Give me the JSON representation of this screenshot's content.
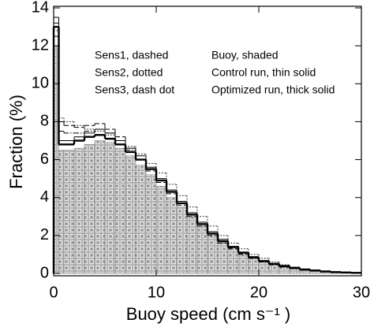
{
  "chart_data": {
    "type": "histogram",
    "x_label": "Buoy speed (cm s⁻¹ )",
    "y_label": "Fraction (%)",
    "bins": [
      0,
      0.5,
      1,
      2,
      3,
      4,
      5,
      6,
      7,
      8,
      9,
      10,
      11,
      12,
      13,
      14,
      15,
      16,
      17,
      18,
      19,
      20,
      21,
      22,
      23,
      24,
      25,
      26,
      27,
      28,
      29,
      30
    ],
    "xlim": [
      0,
      30
    ],
    "xticks": [
      0,
      10,
      20,
      30
    ],
    "ylim": [
      0,
      14
    ],
    "yticks": [
      0,
      2,
      4,
      6,
      8,
      10,
      12,
      14
    ],
    "series": [
      {
        "name": "Sens1, dashed",
        "style": "dashed",
        "color": "#000000",
        "values": [
          12.5,
          8.0,
          7.8,
          7.7,
          7.8,
          7.9,
          7.6,
          7.2,
          6.6,
          6.0,
          5.4,
          4.8,
          4.2,
          3.6,
          3.0,
          2.5,
          2.0,
          1.6,
          1.3,
          1.0,
          0.8,
          0.6,
          0.45,
          0.34,
          0.25,
          0.18,
          0.13,
          0.09,
          0.06,
          0.04,
          0.03
        ]
      },
      {
        "name": "Sens2, dotted",
        "style": "dotted",
        "color": "#000000",
        "values": [
          12.8,
          8.2,
          8.0,
          7.8,
          7.6,
          7.5,
          7.3,
          7.0,
          6.7,
          6.3,
          5.8,
          5.3,
          4.7,
          4.1,
          3.5,
          3.0,
          2.5,
          2.0,
          1.6,
          1.3,
          1.0,
          0.8,
          0.6,
          0.45,
          0.33,
          0.24,
          0.17,
          0.12,
          0.08,
          0.05,
          0.04
        ]
      },
      {
        "name": "Sens3, dash dot",
        "style": "dash-dot",
        "color": "#000000",
        "values": [
          13.2,
          7.5,
          7.4,
          7.4,
          7.5,
          7.6,
          7.4,
          7.0,
          6.5,
          6.0,
          5.5,
          4.9,
          4.3,
          3.7,
          3.1,
          2.6,
          2.1,
          1.7,
          1.35,
          1.05,
          0.8,
          0.6,
          0.46,
          0.35,
          0.26,
          0.19,
          0.14,
          0.1,
          0.07,
          0.05,
          0.03
        ]
      },
      {
        "name": "Buoy, shaded",
        "style": "shaded",
        "color": "#a8a8a8",
        "values": [
          12.0,
          6.5,
          6.5,
          6.6,
          6.8,
          7.0,
          6.9,
          6.6,
          6.2,
          5.7,
          5.2,
          4.6,
          4.0,
          3.5,
          3.0,
          2.5,
          2.1,
          1.7,
          1.4,
          1.1,
          0.9,
          0.7,
          0.55,
          0.45,
          0.35,
          0.25,
          0.2,
          0.15,
          0.1,
          0.08,
          0.05
        ]
      },
      {
        "name": "Control run, thin solid",
        "style": "thin",
        "color": "#000000",
        "values": [
          13.5,
          7.0,
          7.0,
          7.2,
          7.4,
          7.6,
          7.4,
          7.0,
          6.6,
          6.2,
          5.6,
          5.0,
          4.4,
          3.8,
          3.2,
          2.7,
          2.2,
          1.8,
          1.4,
          1.1,
          0.85,
          0.65,
          0.5,
          0.38,
          0.28,
          0.2,
          0.15,
          0.1,
          0.07,
          0.05,
          0.03
        ]
      },
      {
        "name": "Optimized run, thick solid",
        "style": "thick",
        "color": "#000000",
        "values": [
          13.0,
          6.8,
          6.8,
          7.0,
          7.2,
          7.3,
          7.1,
          6.8,
          6.4,
          6.0,
          5.5,
          4.9,
          4.3,
          3.7,
          3.1,
          2.6,
          2.1,
          1.7,
          1.4,
          1.1,
          0.85,
          0.65,
          0.5,
          0.38,
          0.28,
          0.2,
          0.15,
          0.1,
          0.07,
          0.05,
          0.03
        ]
      }
    ]
  }
}
